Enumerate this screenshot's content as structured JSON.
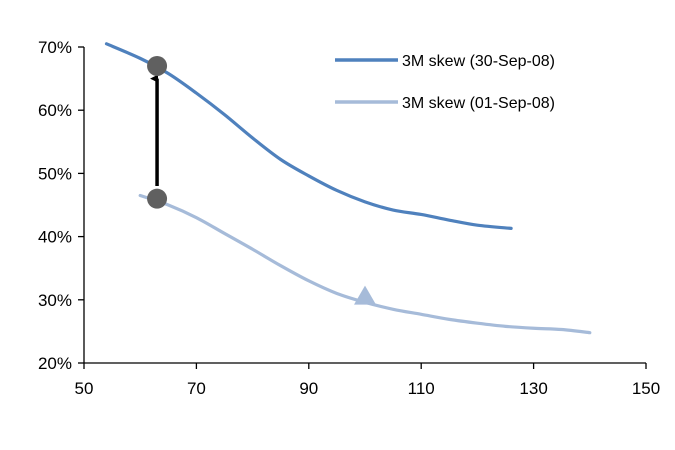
{
  "chart_data": {
    "type": "line",
    "title": "",
    "xlabel": "",
    "ylabel": "",
    "xlim": [
      50,
      150
    ],
    "ylim": [
      20,
      70
    ],
    "x_ticks": [
      50,
      70,
      90,
      110,
      130,
      150
    ],
    "y_ticks": [
      20,
      30,
      40,
      50,
      60,
      70
    ],
    "x_tick_labels": [
      "50",
      "70",
      "90",
      "110",
      "130",
      "150"
    ],
    "y_tick_labels": [
      "20%",
      "30%",
      "40%",
      "50%",
      "60%",
      "70%"
    ],
    "grid": false,
    "legend_position": "top-right",
    "series": [
      {
        "name": "3M skew (30-Sep-08)",
        "color": "#4f81bd",
        "x": [
          54,
          60,
          65,
          70,
          75,
          80,
          85,
          90,
          95,
          100,
          105,
          110,
          115,
          120,
          126
        ],
        "y": [
          70.5,
          68.2,
          65.8,
          62.7,
          59.3,
          55.6,
          52.2,
          49.6,
          47.3,
          45.5,
          44.2,
          43.5,
          42.6,
          41.8,
          41.3
        ]
      },
      {
        "name": "3M skew (01-Sep-08)",
        "color": "#a6bbd9",
        "x": [
          60,
          65,
          70,
          75,
          80,
          85,
          90,
          95,
          100,
          105,
          110,
          115,
          120,
          125,
          130,
          135,
          140
        ],
        "y": [
          46.5,
          45.0,
          43.0,
          40.5,
          38.0,
          35.4,
          33.0,
          31.0,
          29.6,
          28.5,
          27.7,
          26.9,
          26.3,
          25.8,
          25.5,
          25.3,
          24.8
        ]
      }
    ],
    "annotations": {
      "markers": [
        {
          "kind": "circle",
          "x": 63,
          "y": 67.0,
          "color": "#606060"
        },
        {
          "kind": "circle",
          "x": 63,
          "y": 46.0,
          "color": "#606060"
        },
        {
          "kind": "triangle",
          "x": 100,
          "y": 30.5,
          "color": "#a6bbd9"
        }
      ],
      "arrow": {
        "x": 63,
        "from_y": 48.0,
        "to_y": 65.0,
        "color": "#000000"
      }
    }
  }
}
